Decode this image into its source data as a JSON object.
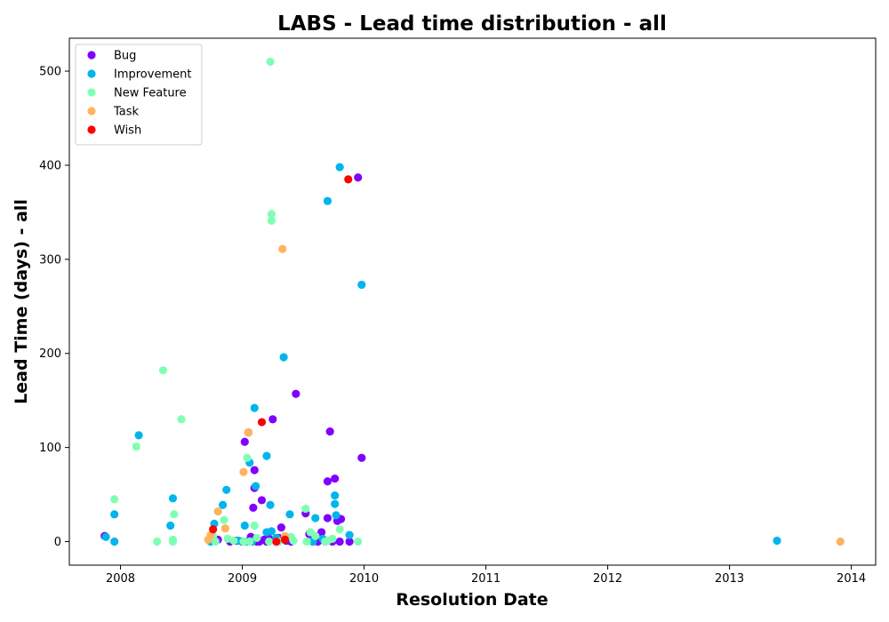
{
  "chart_data": {
    "type": "scatter",
    "title": "LABS - Lead time distribution - all",
    "xlabel": "Resolution Date",
    "ylabel": "Lead Time (days) - all",
    "xlim": [
      2007.58,
      2014.2
    ],
    "ylim": [
      -25,
      535
    ],
    "x_ticks": [
      "2008",
      "2009",
      "2010",
      "2011",
      "2012",
      "2013",
      "2014"
    ],
    "y_ticks": [
      0,
      100,
      200,
      300,
      400,
      500
    ],
    "legend_position": "top-left",
    "grid": false,
    "series": [
      {
        "name": "Bug",
        "color": "#8000ff",
        "points": [
          [
            2007.87,
            6
          ],
          [
            2008.8,
            2
          ],
          [
            2008.9,
            0
          ],
          [
            2008.95,
            1
          ],
          [
            2009.0,
            0
          ],
          [
            2009.02,
            106
          ],
          [
            2009.05,
            116
          ],
          [
            2009.07,
            5
          ],
          [
            2009.09,
            36
          ],
          [
            2009.1,
            57
          ],
          [
            2009.1,
            76
          ],
          [
            2009.12,
            0
          ],
          [
            2009.14,
            0
          ],
          [
            2009.16,
            44
          ],
          [
            2009.18,
            2
          ],
          [
            2009.2,
            0
          ],
          [
            2009.22,
            3
          ],
          [
            2009.25,
            130
          ],
          [
            2009.28,
            0
          ],
          [
            2009.3,
            4
          ],
          [
            2009.32,
            15
          ],
          [
            2009.36,
            1
          ],
          [
            2009.4,
            0
          ],
          [
            2009.44,
            157
          ],
          [
            2009.52,
            30
          ],
          [
            2009.55,
            8
          ],
          [
            2009.58,
            0
          ],
          [
            2009.6,
            2
          ],
          [
            2009.62,
            0
          ],
          [
            2009.65,
            10
          ],
          [
            2009.68,
            0
          ],
          [
            2009.7,
            25
          ],
          [
            2009.7,
            64
          ],
          [
            2009.72,
            117
          ],
          [
            2009.74,
            0
          ],
          [
            2009.76,
            67
          ],
          [
            2009.78,
            22
          ],
          [
            2009.8,
            0
          ],
          [
            2009.81,
            24
          ],
          [
            2009.88,
            0
          ],
          [
            2009.95,
            387
          ],
          [
            2009.98,
            89
          ]
        ]
      },
      {
        "name": "Improvement",
        "color": "#00b5eb",
        "points": [
          [
            2007.88,
            5
          ],
          [
            2007.95,
            29
          ],
          [
            2007.95,
            0
          ],
          [
            2008.15,
            113
          ],
          [
            2008.41,
            17
          ],
          [
            2008.43,
            46
          ],
          [
            2008.74,
            0
          ],
          [
            2008.77,
            19
          ],
          [
            2008.84,
            39
          ],
          [
            2008.87,
            55
          ],
          [
            2008.97,
            1
          ],
          [
            2009.02,
            17
          ],
          [
            2009.04,
            0
          ],
          [
            2009.06,
            84
          ],
          [
            2009.08,
            0
          ],
          [
            2009.1,
            142
          ],
          [
            2009.11,
            59
          ],
          [
            2009.2,
            91
          ],
          [
            2009.2,
            10
          ],
          [
            2009.23,
            39
          ],
          [
            2009.24,
            11
          ],
          [
            2009.28,
            4
          ],
          [
            2009.34,
            196
          ],
          [
            2009.39,
            29
          ],
          [
            2009.58,
            0
          ],
          [
            2009.6,
            25
          ],
          [
            2009.66,
            3
          ],
          [
            2009.7,
            362
          ],
          [
            2009.76,
            49
          ],
          [
            2009.76,
            40
          ],
          [
            2009.77,
            28
          ],
          [
            2009.8,
            398
          ],
          [
            2009.88,
            7
          ],
          [
            2009.98,
            273
          ],
          [
            2013.39,
            1
          ]
        ]
      },
      {
        "name": "New Feature",
        "color": "#80ffb4",
        "points": [
          [
            2007.95,
            45
          ],
          [
            2008.13,
            101
          ],
          [
            2008.3,
            0
          ],
          [
            2008.35,
            182
          ],
          [
            2008.43,
            0
          ],
          [
            2008.43,
            2
          ],
          [
            2008.44,
            29
          ],
          [
            2008.5,
            130
          ],
          [
            2008.76,
            6
          ],
          [
            2008.78,
            0
          ],
          [
            2008.85,
            23
          ],
          [
            2008.88,
            3
          ],
          [
            2008.93,
            1
          ],
          [
            2009.01,
            0
          ],
          [
            2009.04,
            89
          ],
          [
            2009.06,
            0
          ],
          [
            2009.1,
            17
          ],
          [
            2009.12,
            4
          ],
          [
            2009.22,
            0
          ],
          [
            2009.23,
            510
          ],
          [
            2009.24,
            348
          ],
          [
            2009.24,
            341
          ],
          [
            2009.3,
            0
          ],
          [
            2009.35,
            3
          ],
          [
            2009.4,
            5
          ],
          [
            2009.42,
            1
          ],
          [
            2009.52,
            35
          ],
          [
            2009.53,
            0
          ],
          [
            2009.56,
            10
          ],
          [
            2009.6,
            6
          ],
          [
            2009.68,
            0
          ],
          [
            2009.7,
            1
          ],
          [
            2009.74,
            3
          ],
          [
            2009.8,
            13
          ],
          [
            2009.95,
            0
          ]
        ]
      },
      {
        "name": "Task",
        "color": "#ffb360",
        "points": [
          [
            2008.72,
            2
          ],
          [
            2008.74,
            7
          ],
          [
            2008.8,
            32
          ],
          [
            2008.86,
            14
          ],
          [
            2009.01,
            74
          ],
          [
            2009.05,
            116
          ],
          [
            2009.33,
            311
          ],
          [
            2009.35,
            6
          ],
          [
            2013.91,
            0
          ]
        ]
      },
      {
        "name": "Wish",
        "color": "#ff0000",
        "points": [
          [
            2008.76,
            13
          ],
          [
            2009.16,
            127
          ],
          [
            2009.28,
            0
          ],
          [
            2009.35,
            2
          ],
          [
            2009.87,
            385
          ]
        ]
      }
    ]
  }
}
